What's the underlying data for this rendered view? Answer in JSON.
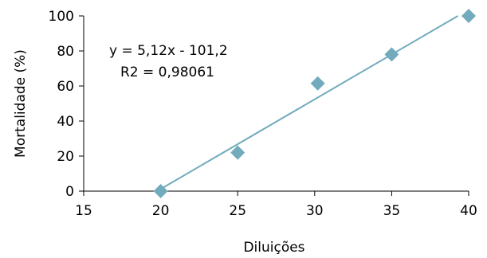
{
  "chart_data": {
    "type": "scatter",
    "title": "",
    "xlabel": "Diluições",
    "ylabel": "Mortalidade (%)",
    "xlim": [
      15,
      40
    ],
    "ylim": [
      0,
      100
    ],
    "xticks": [
      "15",
      "20",
      "25",
      "30",
      "35",
      "40"
    ],
    "yticks": [
      "0",
      "20",
      "40",
      "60",
      "80",
      "100"
    ],
    "grid": false,
    "legend": "none",
    "series": [
      {
        "points": [
          {
            "x": 20,
            "y": 0
          },
          {
            "x": 25,
            "y": 22
          },
          {
            "x": 30.2,
            "y": 61.5
          },
          {
            "x": 35,
            "y": 78
          },
          {
            "x": 40,
            "y": 100
          }
        ],
        "color": "#72abbd"
      }
    ],
    "trendline": {
      "type": "linear",
      "slope": 5.12,
      "intercept": -101.2,
      "x_range": [
        20,
        39.3
      ],
      "color": "#72abbd"
    },
    "annotations": {
      "equation": "y = 5,12x - 101,2",
      "r2": "R2 = 0,98061"
    }
  }
}
